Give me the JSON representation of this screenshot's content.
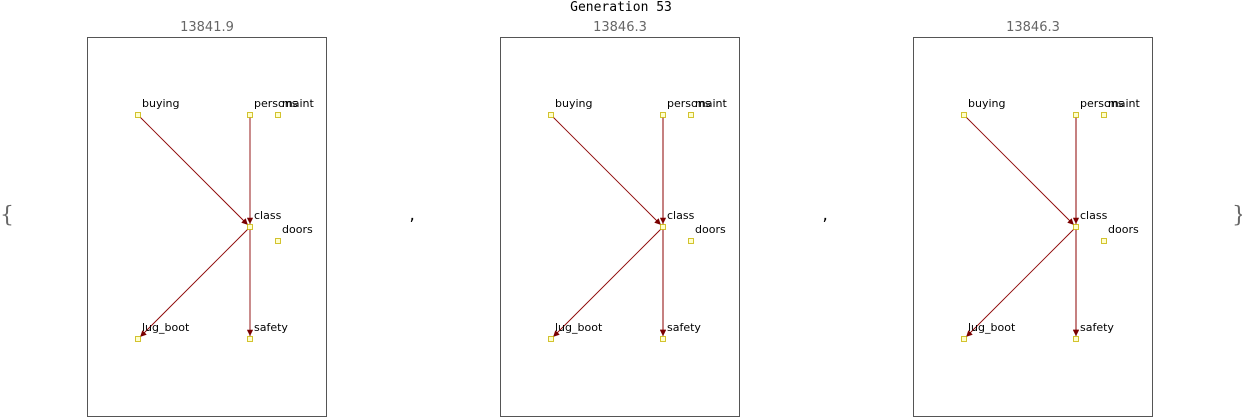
{
  "title": "Generation 53",
  "open_brace": "{",
  "close_brace": "}",
  "separator": ",",
  "colors": {
    "edge": "#8b0000",
    "node_fill": "#ffffcc",
    "node_stroke": "#c8b400",
    "frame": "#555555",
    "score_text": "#666666"
  },
  "networks": [
    {
      "score": "13841.9",
      "nodes": [
        "buying",
        "persons",
        "maint",
        "class",
        "doors",
        "lug_boot",
        "safety"
      ],
      "edges": [
        [
          "buying",
          "class"
        ],
        [
          "persons",
          "class"
        ],
        [
          "class",
          "lug_boot"
        ],
        [
          "class",
          "safety"
        ]
      ]
    },
    {
      "score": "13846.3",
      "nodes": [
        "buying",
        "persons",
        "maint",
        "class",
        "doors",
        "lug_boot",
        "safety"
      ],
      "edges": [
        [
          "buying",
          "class"
        ],
        [
          "persons",
          "class"
        ],
        [
          "persons",
          "safety"
        ],
        [
          "class",
          "lug_boot"
        ],
        [
          "class",
          "safety"
        ]
      ]
    },
    {
      "score": "13846.3",
      "nodes": [
        "buying",
        "persons",
        "maint",
        "class",
        "doors",
        "lug_boot",
        "safety"
      ],
      "edges": [
        [
          "buying",
          "class"
        ],
        [
          "persons",
          "class"
        ],
        [
          "persons",
          "safety"
        ],
        [
          "class",
          "lug_boot"
        ],
        [
          "class",
          "safety"
        ]
      ]
    }
  ]
}
